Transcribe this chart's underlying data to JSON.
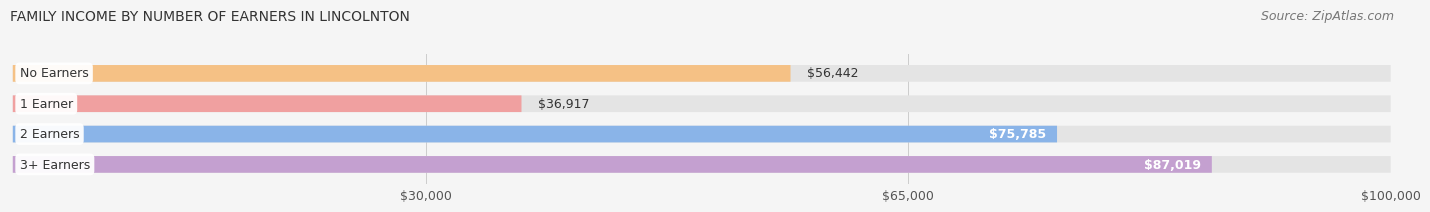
{
  "title": "FAMILY INCOME BY NUMBER OF EARNERS IN LINCOLNTON",
  "source": "Source: ZipAtlas.com",
  "categories": [
    "No Earners",
    "1 Earner",
    "2 Earners",
    "3+ Earners"
  ],
  "values": [
    56442,
    36917,
    75785,
    87019
  ],
  "labels": [
    "$56,442",
    "$36,917",
    "$75,785",
    "$87,019"
  ],
  "bar_colors": [
    "#f5c185",
    "#f0a0a0",
    "#8ab4e8",
    "#c4a0d0"
  ],
  "bar_bg_color": "#e4e4e4",
  "xmin": 0,
  "xmax": 100000,
  "xticks": [
    30000,
    65000,
    100000
  ],
  "xtick_labels": [
    "$30,000",
    "$65,000",
    "$100,000"
  ],
  "background_color": "#f5f5f5",
  "title_fontsize": 10,
  "label_fontsize": 9,
  "source_fontsize": 9
}
